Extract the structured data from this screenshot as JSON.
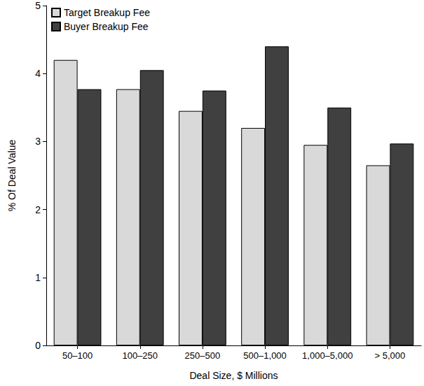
{
  "chart_data": {
    "type": "bar",
    "x_label": "Deal Size, $ Millions",
    "y_label": "% Of Deal Value",
    "categories": [
      "50–100",
      "100–250",
      "250–500",
      "500–1,000",
      "1,000–5,000",
      "> 5,000"
    ],
    "series": [
      {
        "name": "Target Breakup Fee",
        "color": "#d9d9d9",
        "values": [
          4.2,
          3.77,
          3.45,
          3.2,
          2.95,
          2.65
        ]
      },
      {
        "name": "Buyer Breakup Fee",
        "color": "#404040",
        "values": [
          3.77,
          4.05,
          3.75,
          4.4,
          3.5,
          2.97
        ]
      }
    ],
    "ylim": [
      0,
      5
    ],
    "yticks": [
      0,
      1,
      2,
      3,
      4,
      5
    ],
    "grid": false,
    "legend": "top-left"
  }
}
